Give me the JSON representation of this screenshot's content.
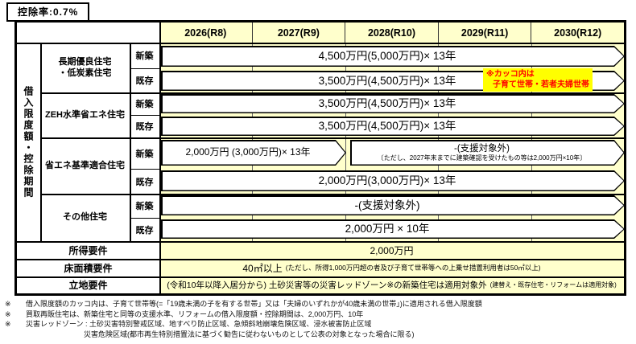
{
  "deduction_rate": "控除率:0.7%",
  "table": {
    "axis_label": "借入限度額・控除期間",
    "years": [
      "2026(R8)",
      "2027(R9)",
      "2028(R10)",
      "2029(R11)",
      "2030(R12)"
    ],
    "categories": [
      {
        "line1": "長期優良住宅",
        "line2": "・低炭素住宅"
      },
      {
        "line1": "ZEH水準省エネ住宅",
        "line2": ""
      },
      {
        "line1": "省エネ基準適合住宅",
        "line2": ""
      },
      {
        "line1": "その他住宅",
        "line2": ""
      }
    ],
    "rows": [
      {
        "type": "新築",
        "value": "4,500万円(5,000万円)× 13年"
      },
      {
        "type": "既存",
        "value": "3,500万円(4,500万円)× 13年"
      },
      {
        "type": "新築",
        "value": "3,500万円(4,500万円)× 13年"
      },
      {
        "type": "既存",
        "value": "3,500万円(4,500万円)× 13年"
      },
      {
        "type": "新築",
        "value_left": "2,000万円 (3,000万円)× 13年",
        "value_right_main": "-(支援対象外)",
        "value_right_note": "〔ただし、2027年末までに建築確認を受けたもの等は2,000万円×10年〕"
      },
      {
        "type": "既存",
        "value": "2,000万円(3,000万円)× 13年"
      },
      {
        "type": "新築",
        "value": "-(支援対象外)"
      },
      {
        "type": "既存",
        "value": "2,000万円 × 10年"
      }
    ],
    "income_label": "所得要件",
    "income_value": "2,000万円",
    "floor_label": "床面積要件",
    "floor_value_main": "40㎡以上",
    "floor_value_note": "(ただし、所得1,000万円超の者及び子育て世帯等への上乗せ措置利用者は50㎡以上)",
    "location_label": "立地要件",
    "location_value_main": "(令和10年以降入居分から) 土砂災害等の災害レッドゾーン※の新築住宅は適用対象外",
    "location_value_note": "(建替え・既存住宅・リフォームは適用対象)"
  },
  "annotation": {
    "line1": "※カッコ内は",
    "line2": "子育て世帯・若者夫婦世帯"
  },
  "footnotes": [
    {
      "marker": "※",
      "text": "借入限度額のカッコ内は、子育て世帯等(=「19歳未満の子を有する世帯」又は「夫婦のいずれかが40歳未満の世帯」)に適用される借入限度額"
    },
    {
      "marker": "※",
      "text": "買取再販住宅は、新築住宅と同等の支援水準、リフォームの借入限度額・控除期間は、2,000万円、10年"
    },
    {
      "marker": "※",
      "text": "災害レッドゾーン :  土砂災害特別警戒区域、地すべり防止区域、急傾斜地崩壊危険区域、浸水被害防止区域"
    },
    {
      "marker": "",
      "text": "災害危険区域(都市再生特別措置法に基づく勧告に従わないものとして公表の対象となった場合に限る)"
    }
  ],
  "colors": {
    "band": "#FFFFCC",
    "highlight": "#FFFF00",
    "alert": "#FF0000",
    "border": "#000000"
  }
}
